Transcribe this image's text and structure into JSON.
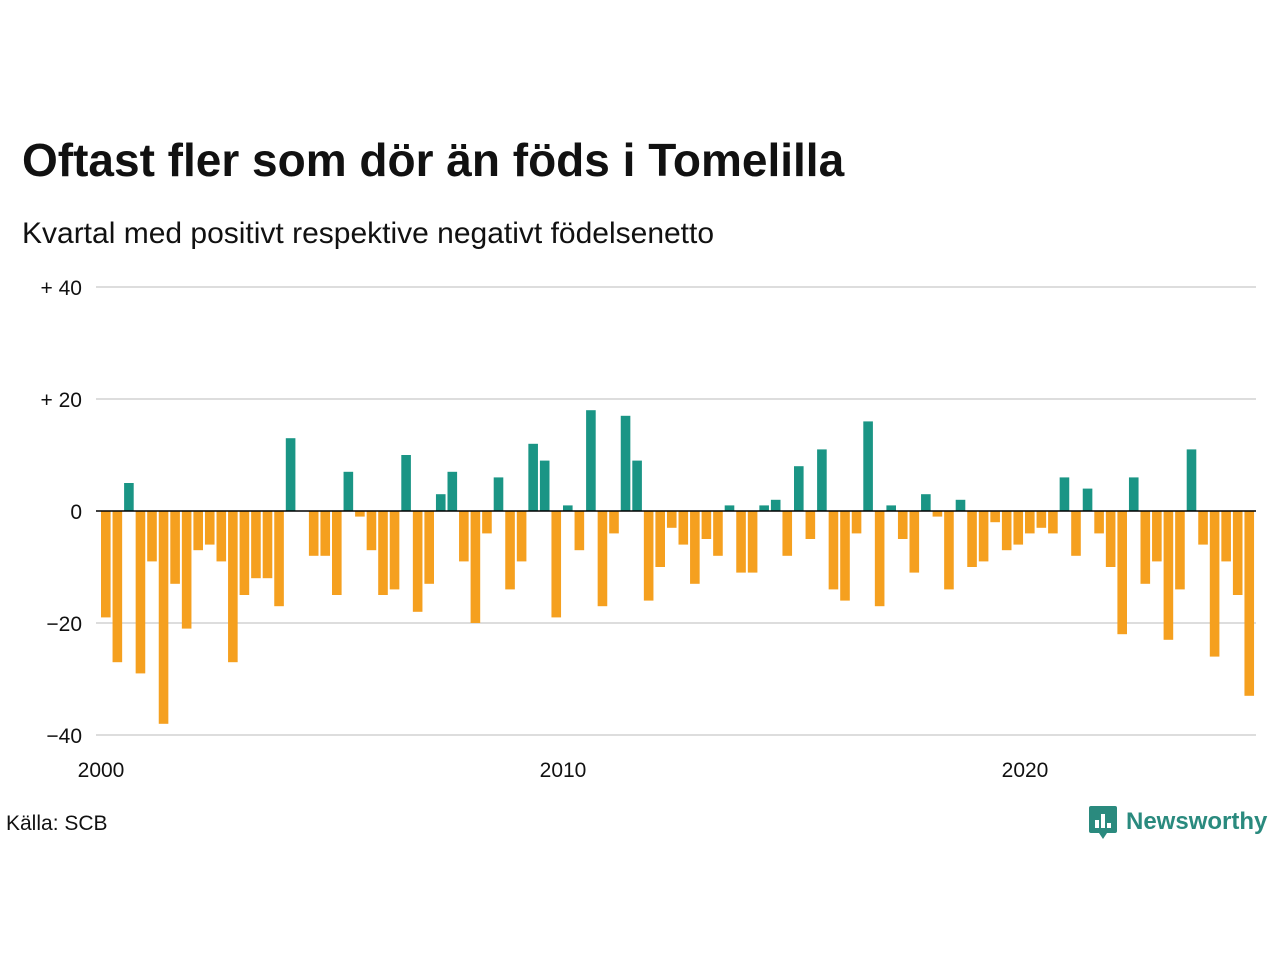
{
  "header": {
    "title": "Oftast fler som dör än föds i Tomelilla",
    "subtitle": "Kvartal med positivt respektive negativt födelsenetto"
  },
  "footer": {
    "source": "Källa: SCB",
    "brand": "Newsworthy",
    "brand_icon": "newsworthy-chart-icon"
  },
  "colors": {
    "positive": "#1a9585",
    "negative": "#f5a01f",
    "grid": "#dddddd",
    "zero_line": "#000000",
    "brand": "#2a8a7e"
  },
  "chart_data": {
    "type": "bar",
    "title": "Oftast fler som dör än föds i Tomelilla",
    "subtitle": "Kvartal med positivt respektive negativt födelsenetto",
    "x_start": 2000,
    "x_step": 0.25,
    "x_ticks": [
      {
        "value": 2000,
        "label": "2000"
      },
      {
        "value": 2010,
        "label": "2010"
      },
      {
        "value": 2020,
        "label": "2020"
      }
    ],
    "y_ticks": [
      {
        "value": 40,
        "label": "+ 40"
      },
      {
        "value": 20,
        "label": "+ 20"
      },
      {
        "value": 0,
        "label": "0"
      },
      {
        "value": -20,
        "label": "−20"
      },
      {
        "value": -40,
        "label": "−40"
      }
    ],
    "ylim": [
      -40,
      40
    ],
    "grid": true,
    "values": [
      -19,
      -27,
      5,
      -29,
      -9,
      -38,
      -13,
      -21,
      -7,
      -6,
      -9,
      -27,
      -15,
      -12,
      -12,
      -17,
      13,
      0,
      -8,
      -8,
      -15,
      7,
      -1,
      -7,
      -15,
      -14,
      10,
      -18,
      -13,
      3,
      7,
      -9,
      -20,
      -4,
      6,
      -14,
      -9,
      12,
      9,
      -19,
      1,
      -7,
      18,
      -17,
      -4,
      17,
      9,
      -16,
      -10,
      -3,
      -6,
      -13,
      -5,
      -8,
      1,
      -11,
      -11,
      1,
      2,
      -8,
      8,
      -5,
      11,
      -14,
      -16,
      -4,
      16,
      -17,
      1,
      -5,
      -11,
      3,
      -1,
      -14,
      2,
      -10,
      -9,
      -2,
      -7,
      -6,
      -4,
      -3,
      -4,
      6,
      -8,
      4,
      -4,
      -10,
      -22,
      6,
      -13,
      -9,
      -23,
      -14,
      11,
      -6,
      -26,
      -9,
      -15,
      -33
    ]
  }
}
